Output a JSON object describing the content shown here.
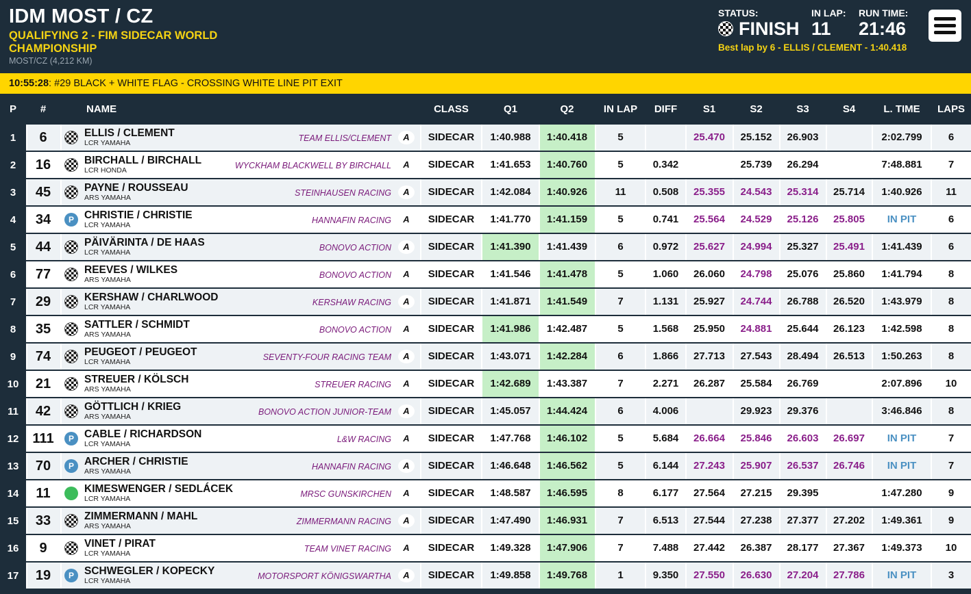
{
  "header": {
    "event_title": "IDM MOST / CZ",
    "session_name": "QUALIFYING 2 - FIM SIDECAR WORLD CHAMPIONSHIP",
    "track": "MOST/CZ (4,212 KM)",
    "status_label": "STATUS:",
    "status_value": "FINISH",
    "inlap_label": "IN LAP:",
    "inlap_value": "11",
    "runtime_label": "RUN TIME:",
    "runtime_value": "21:46",
    "best_lap": "Best lap by 6 - ELLIS / CLEMENT - 1:40.418",
    "menu_icon": "hamburger-menu-icon"
  },
  "message": {
    "time": "10:55:28",
    "text": ": #29 BLACK + WHITE FLAG - CROSSING WHITE LINE PIT EXIT"
  },
  "columns": {
    "p": "P",
    "num": "#",
    "name": "NAME",
    "class": "CLASS",
    "q1": "Q1",
    "q2": "Q2",
    "inlap": "IN LAP",
    "diff": "DIFF",
    "s1": "S1",
    "s2": "S2",
    "s3": "S3",
    "s4": "S4",
    "ltime": "L. TIME",
    "laps": "LAPS"
  },
  "colors": {
    "header_bg": "#1d2d3a",
    "accent_yellow": "#f5d313",
    "message_bar": "#ffd500",
    "best_green": "#c6efc7",
    "sector_purple": "#8a1f8a",
    "pit_blue": "#4a90c2",
    "row_alt": "#eef2f5"
  },
  "rows": [
    {
      "pos": "1",
      "num": "6",
      "name": "ELLIS / CLEMENT",
      "bike": "LCR YAMAHA",
      "team": "TEAM ELLIS/CLEMENT",
      "status": "flag",
      "class": "SIDECAR",
      "q1": "1:40.988",
      "q2": "1:40.418",
      "best": "q2",
      "inlap": "5",
      "diff": "",
      "s1": "25.470",
      "s2": "25.152",
      "s3": "26.903",
      "s4": "",
      "ltime": "2:02.799",
      "laps": "6",
      "purple": [
        "s1"
      ]
    },
    {
      "pos": "2",
      "num": "16",
      "name": "BIRCHALL / BIRCHALL",
      "bike": "LCR HONDA",
      "team": "WYCKHAM BLACKWELL BY BIRCHALL",
      "status": "flag",
      "class": "SIDECAR",
      "q1": "1:41.653",
      "q2": "1:40.760",
      "best": "q2",
      "inlap": "5",
      "diff": "0.342",
      "s1": "",
      "s2": "25.739",
      "s3": "26.294",
      "s4": "",
      "ltime": "7:48.881",
      "laps": "7",
      "purple": []
    },
    {
      "pos": "3",
      "num": "45",
      "name": "PAYNE / ROUSSEAU",
      "bike": "ARS YAMAHA",
      "team": "STEINHAUSEN RACING",
      "status": "flag",
      "class": "SIDECAR",
      "q1": "1:42.084",
      "q2": "1:40.926",
      "best": "q2",
      "inlap": "11",
      "diff": "0.508",
      "s1": "25.355",
      "s2": "24.543",
      "s3": "25.314",
      "s4": "25.714",
      "ltime": "1:40.926",
      "laps": "11",
      "purple": [
        "s1",
        "s2",
        "s3"
      ]
    },
    {
      "pos": "4",
      "num": "34",
      "name": "CHRISTIE / CHRISTIE",
      "bike": "LCR YAMAHA",
      "team": "HANNAFIN RACING",
      "status": "pit",
      "class": "SIDECAR",
      "q1": "1:41.770",
      "q2": "1:41.159",
      "best": "q2",
      "inlap": "5",
      "diff": "0.741",
      "s1": "25.564",
      "s2": "24.529",
      "s3": "25.126",
      "s4": "25.805",
      "ltime": "IN PIT",
      "laps": "6",
      "purple": [
        "s1",
        "s2",
        "s3",
        "s4"
      ]
    },
    {
      "pos": "5",
      "num": "44",
      "name": "PÄIVÄRINTA / DE HAAS",
      "bike": "LCR YAMAHA",
      "team": "BONOVO ACTION",
      "status": "flag",
      "class": "SIDECAR",
      "q1": "1:41.390",
      "q2": "1:41.439",
      "best": "q1",
      "inlap": "6",
      "diff": "0.972",
      "s1": "25.627",
      "s2": "24.994",
      "s3": "25.327",
      "s4": "25.491",
      "ltime": "1:41.439",
      "laps": "6",
      "purple": [
        "s1",
        "s2",
        "s4"
      ]
    },
    {
      "pos": "6",
      "num": "77",
      "name": "REEVES / WILKES",
      "bike": "ARS YAMAHA",
      "team": "BONOVO ACTION",
      "status": "flag",
      "class": "SIDECAR",
      "q1": "1:41.546",
      "q2": "1:41.478",
      "best": "q2",
      "inlap": "5",
      "diff": "1.060",
      "s1": "26.060",
      "s2": "24.798",
      "s3": "25.076",
      "s4": "25.860",
      "ltime": "1:41.794",
      "laps": "8",
      "purple": [
        "s2"
      ]
    },
    {
      "pos": "7",
      "num": "29",
      "name": "KERSHAW / CHARLWOOD",
      "bike": "LCR YAMAHA",
      "team": "KERSHAW RACING",
      "status": "flag",
      "class": "SIDECAR",
      "q1": "1:41.871",
      "q2": "1:41.549",
      "best": "q2",
      "inlap": "7",
      "diff": "1.131",
      "s1": "25.927",
      "s2": "24.744",
      "s3": "26.788",
      "s4": "26.520",
      "ltime": "1:43.979",
      "laps": "8",
      "purple": [
        "s2"
      ]
    },
    {
      "pos": "8",
      "num": "35",
      "name": "SATTLER / SCHMIDT",
      "bike": "ARS YAMAHA",
      "team": "BONOVO ACTION",
      "status": "flag",
      "class": "SIDECAR",
      "q1": "1:41.986",
      "q2": "1:42.487",
      "best": "q1",
      "inlap": "5",
      "diff": "1.568",
      "s1": "25.950",
      "s2": "24.881",
      "s3": "25.644",
      "s4": "26.123",
      "ltime": "1:42.598",
      "laps": "8",
      "purple": [
        "s2"
      ]
    },
    {
      "pos": "9",
      "num": "74",
      "name": "PEUGEOT / PEUGEOT",
      "bike": "LCR YAMAHA",
      "team": "SEVENTY-FOUR RACING TEAM",
      "status": "flag",
      "class": "SIDECAR",
      "q1": "1:43.071",
      "q2": "1:42.284",
      "best": "q2",
      "inlap": "6",
      "diff": "1.866",
      "s1": "27.713",
      "s2": "27.543",
      "s3": "28.494",
      "s4": "26.513",
      "ltime": "1:50.263",
      "laps": "8",
      "purple": []
    },
    {
      "pos": "10",
      "num": "21",
      "name": "STREUER / KÖLSCH",
      "bike": "ARS YAMAHA",
      "team": "STREUER RACING",
      "status": "flag",
      "class": "SIDECAR",
      "q1": "1:42.689",
      "q2": "1:43.387",
      "best": "q1",
      "inlap": "7",
      "diff": "2.271",
      "s1": "26.287",
      "s2": "25.584",
      "s3": "26.769",
      "s4": "",
      "ltime": "2:07.896",
      "laps": "10",
      "purple": []
    },
    {
      "pos": "11",
      "num": "42",
      "name": "GÖTTLICH / KRIEG",
      "bike": "ARS YAMAHA",
      "team": "BONOVO ACTION JUNIOR-TEAM",
      "status": "flag",
      "class": "SIDECAR",
      "q1": "1:45.057",
      "q2": "1:44.424",
      "best": "q2",
      "inlap": "6",
      "diff": "4.006",
      "s1": "",
      "s2": "29.923",
      "s3": "29.376",
      "s4": "",
      "ltime": "3:46.846",
      "laps": "8",
      "purple": []
    },
    {
      "pos": "12",
      "num": "111",
      "name": "CABLE / RICHARDSON",
      "bike": "LCR YAMAHA",
      "team": "L&W RACING",
      "status": "pit",
      "class": "SIDECAR",
      "q1": "1:47.768",
      "q2": "1:46.102",
      "best": "q2",
      "inlap": "5",
      "diff": "5.684",
      "s1": "26.664",
      "s2": "25.846",
      "s3": "26.603",
      "s4": "26.697",
      "ltime": "IN PIT",
      "laps": "7",
      "purple": [
        "s1",
        "s2",
        "s3",
        "s4"
      ]
    },
    {
      "pos": "13",
      "num": "70",
      "name": "ARCHER / CHRISTIE",
      "bike": "ARS YAMAHA",
      "team": "HANNAFIN RACING",
      "status": "pit",
      "class": "SIDECAR",
      "q1": "1:46.648",
      "q2": "1:46.562",
      "best": "q2",
      "inlap": "5",
      "diff": "6.144",
      "s1": "27.243",
      "s2": "25.907",
      "s3": "26.537",
      "s4": "26.746",
      "ltime": "IN PIT",
      "laps": "7",
      "purple": [
        "s1",
        "s2",
        "s3",
        "s4"
      ]
    },
    {
      "pos": "14",
      "num": "11",
      "name": "KIMESWENGER / SEDLÁCEK",
      "bike": "LCR YAMAHA",
      "team": "MRSC GUNSKIRCHEN",
      "status": "run",
      "class": "SIDECAR",
      "q1": "1:48.587",
      "q2": "1:46.595",
      "best": "q2",
      "inlap": "8",
      "diff": "6.177",
      "s1": "27.564",
      "s2": "27.215",
      "s3": "29.395",
      "s4": "",
      "ltime": "1:47.280",
      "laps": "9",
      "purple": []
    },
    {
      "pos": "15",
      "num": "33",
      "name": "ZIMMERMANN / MAHL",
      "bike": "ARS YAMAHA",
      "team": "ZIMMERMANN RACING",
      "status": "flag",
      "class": "SIDECAR",
      "q1": "1:47.490",
      "q2": "1:46.931",
      "best": "q2",
      "inlap": "7",
      "diff": "6.513",
      "s1": "27.544",
      "s2": "27.238",
      "s3": "27.377",
      "s4": "27.202",
      "ltime": "1:49.361",
      "laps": "9",
      "purple": []
    },
    {
      "pos": "16",
      "num": "9",
      "name": "VINET / PIRAT",
      "bike": "LCR YAMAHA",
      "team": "TEAM VINET RACING",
      "status": "flag",
      "class": "SIDECAR",
      "q1": "1:49.328",
      "q2": "1:47.906",
      "best": "q2",
      "inlap": "7",
      "diff": "7.488",
      "s1": "27.442",
      "s2": "26.387",
      "s3": "28.177",
      "s4": "27.367",
      "ltime": "1:49.373",
      "laps": "10",
      "purple": []
    },
    {
      "pos": "17",
      "num": "19",
      "name": "SCHWEGLER / KOPECKY",
      "bike": "LCR YAMAHA",
      "team": "MOTORSPORT KÖNIGSWARTHA",
      "status": "pit",
      "class": "SIDECAR",
      "q1": "1:49.858",
      "q2": "1:49.768",
      "best": "q2",
      "inlap": "1",
      "diff": "9.350",
      "s1": "27.550",
      "s2": "26.630",
      "s3": "27.204",
      "s4": "27.786",
      "ltime": "IN PIT",
      "laps": "3",
      "purple": [
        "s1",
        "s2",
        "s3",
        "s4"
      ]
    }
  ]
}
